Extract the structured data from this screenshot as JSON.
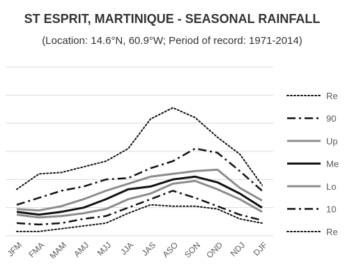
{
  "chart_data": {
    "type": "line",
    "title": "ST ESPRIT, MARTINIQUE - SEASONAL RAINFALL",
    "subtitle": "(Location: 14.6°N, 60.9°W; Period of record: 1971-2014)",
    "categories": [
      "JFM",
      "FMA",
      "MAM",
      "AMJ",
      "MJJ",
      "JJA",
      "JAS",
      "ASO",
      "SON",
      "OND",
      "NDJ",
      "DJF"
    ],
    "y_range": [
      0,
      12
    ],
    "grid": "horizontal",
    "legend_position": "right",
    "series": [
      {
        "name": "Re",
        "style": "dotted-dark",
        "values": [
          3.3,
          4.4,
          4.5,
          4.9,
          5.3,
          6.2,
          8.3,
          9.1,
          8.4,
          7.0,
          5.8,
          3.6
        ]
      },
      {
        "name": "90",
        "style": "dashdot",
        "values": [
          2.2,
          2.7,
          3.2,
          3.5,
          4.0,
          4.1,
          4.8,
          5.3,
          6.2,
          5.9,
          4.6,
          3.2
        ]
      },
      {
        "name": "Up",
        "style": "solid-gray",
        "values": [
          1.9,
          1.8,
          2.1,
          2.6,
          3.2,
          3.7,
          4.2,
          4.4,
          4.6,
          4.7,
          3.4,
          2.5
        ]
      },
      {
        "name": "Me",
        "style": "solid-black",
        "values": [
          1.7,
          1.5,
          1.7,
          2.0,
          2.6,
          3.3,
          3.5,
          4.0,
          4.2,
          3.8,
          3.0,
          2.0
        ]
      },
      {
        "name": "Lo",
        "style": "solid-gray",
        "values": [
          1.5,
          1.3,
          1.4,
          1.6,
          1.9,
          2.6,
          3.0,
          3.7,
          3.9,
          3.3,
          2.6,
          1.7
        ]
      },
      {
        "name": "10",
        "style": "dashdot",
        "values": [
          0.9,
          0.8,
          0.9,
          1.2,
          1.4,
          2.0,
          2.6,
          3.2,
          2.7,
          2.1,
          1.5,
          1.1
        ]
      },
      {
        "name": "Re",
        "style": "dotted-dark",
        "values": [
          0.3,
          0.3,
          0.5,
          0.7,
          0.9,
          1.6,
          2.2,
          2.1,
          2.1,
          1.9,
          1.2,
          0.9
        ]
      }
    ]
  }
}
